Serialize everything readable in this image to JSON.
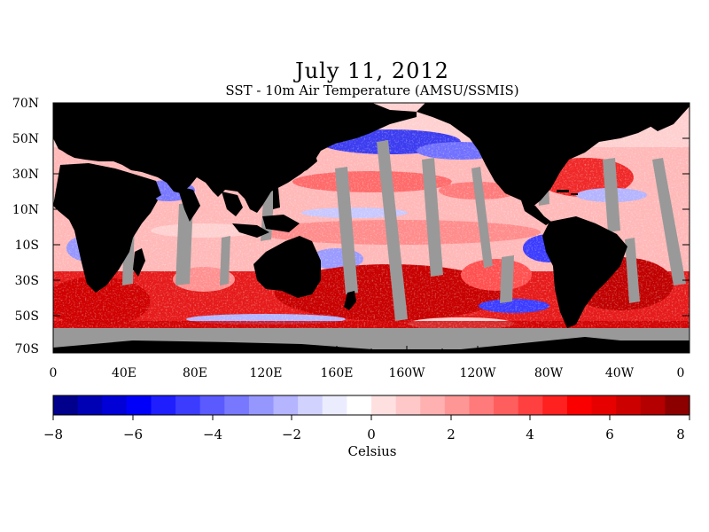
{
  "title": "July 11, 2012",
  "subtitle": "SST - 10m Air Temperature (AMSU/SSMIS)",
  "lat_labels": [
    "70N",
    "50N",
    "30N",
    "10N",
    "10S",
    "30S",
    "50S",
    "70S"
  ],
  "lon_labels": [
    "0",
    "40E",
    "80E",
    "120E",
    "160E",
    "160W",
    "120W",
    "80W",
    "40W",
    "0"
  ],
  "colorbar": {
    "ticks": [
      "−8",
      "−6",
      "−4",
      "−2",
      "0",
      "2",
      "4",
      "6",
      "8"
    ],
    "unit": "Celsius",
    "colors": [
      "#00008c",
      "#0000b4",
      "#0000d7",
      "#0000fa",
      "#1e1eff",
      "#3c3cff",
      "#5a5aff",
      "#7878ff",
      "#9696ff",
      "#b4b4ff",
      "#d2d2ff",
      "#ececff",
      "#ffffff",
      "#ffe0e0",
      "#ffc8c8",
      "#ffb0b0",
      "#ff9696",
      "#ff7a7a",
      "#ff5e5e",
      "#ff4040",
      "#ff2020",
      "#fa0000",
      "#e60000",
      "#cd0000",
      "#b40000",
      "#8c0000"
    ]
  },
  "legend_colors": {
    "land": "#000000",
    "no_data": "#999999"
  }
}
